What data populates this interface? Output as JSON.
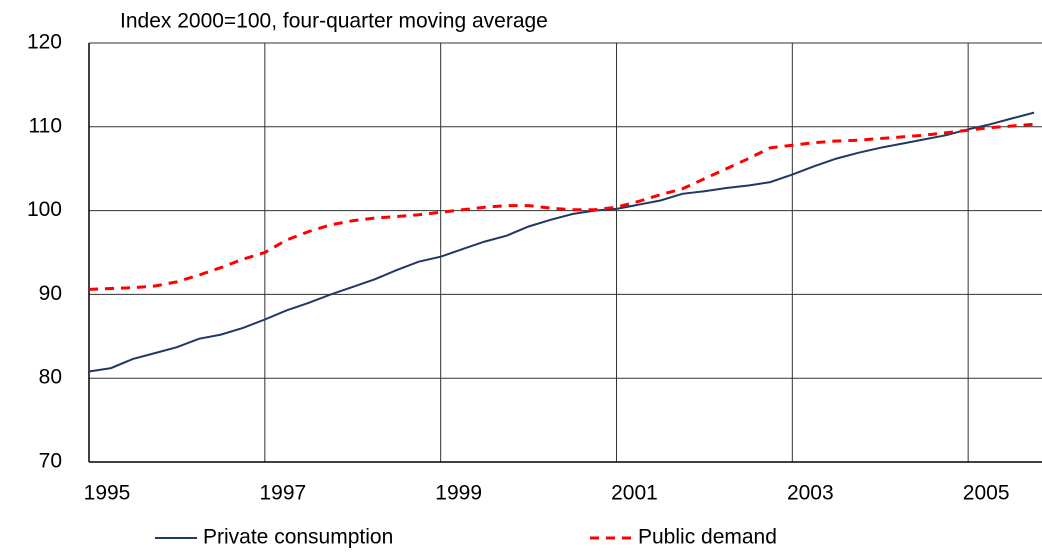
{
  "chart_data": {
    "type": "line",
    "title": "Index 2000=100, four-quarter moving average",
    "x": [
      1995,
      1995.25,
      1995.5,
      1995.75,
      1996,
      1996.25,
      1996.5,
      1996.75,
      1997,
      1997.25,
      1997.5,
      1997.75,
      1998,
      1998.25,
      1998.5,
      1998.75,
      1999,
      1999.25,
      1999.5,
      1999.75,
      2000,
      2000.25,
      2000.5,
      2000.75,
      2001,
      2001.25,
      2001.5,
      2001.75,
      2002,
      2002.25,
      2002.5,
      2002.75,
      2003,
      2003.25,
      2003.5,
      2003.75,
      2004,
      2004.25,
      2004.5,
      2004.75,
      2005,
      2005.25,
      2005.5,
      2005.75
    ],
    "series": [
      {
        "name": "Private consumption",
        "color": "#1f3864",
        "dash": false,
        "values": [
          80.8,
          81.2,
          82.3,
          83.0,
          83.7,
          84.7,
          85.2,
          86.0,
          87.0,
          88.1,
          89.0,
          90.0,
          90.9,
          91.8,
          92.9,
          93.9,
          94.5,
          95.4,
          96.3,
          97.0,
          98.1,
          98.9,
          99.6,
          100.0,
          100.2,
          100.7,
          101.2,
          102.0,
          102.3,
          102.7,
          103.0,
          103.4,
          104.3,
          105.3,
          106.2,
          106.9,
          107.5,
          108.0,
          108.5,
          109.0,
          109.7,
          110.3,
          111.0,
          111.7
        ]
      },
      {
        "name": "Public demand",
        "color": "#ff0000",
        "dash": true,
        "values": [
          90.6,
          90.7,
          90.8,
          91.0,
          91.5,
          92.3,
          93.2,
          94.2,
          95.0,
          96.5,
          97.5,
          98.3,
          98.8,
          99.1,
          99.3,
          99.5,
          99.8,
          100.1,
          100.4,
          100.6,
          100.6,
          100.3,
          100.1,
          100.1,
          100.4,
          101.1,
          101.9,
          102.6,
          103.8,
          105.0,
          106.2,
          107.5,
          107.8,
          108.1,
          108.3,
          108.4,
          108.6,
          108.8,
          109.0,
          109.3,
          109.6,
          109.9,
          110.1,
          110.3
        ]
      }
    ],
    "xlim": [
      1995,
      2005.84
    ],
    "xticks": [
      1995,
      1997,
      1999,
      2001,
      2003,
      2005
    ],
    "ylim": [
      70,
      120
    ],
    "yticks": [
      70,
      80,
      90,
      100,
      110,
      120
    ],
    "grid": true
  }
}
